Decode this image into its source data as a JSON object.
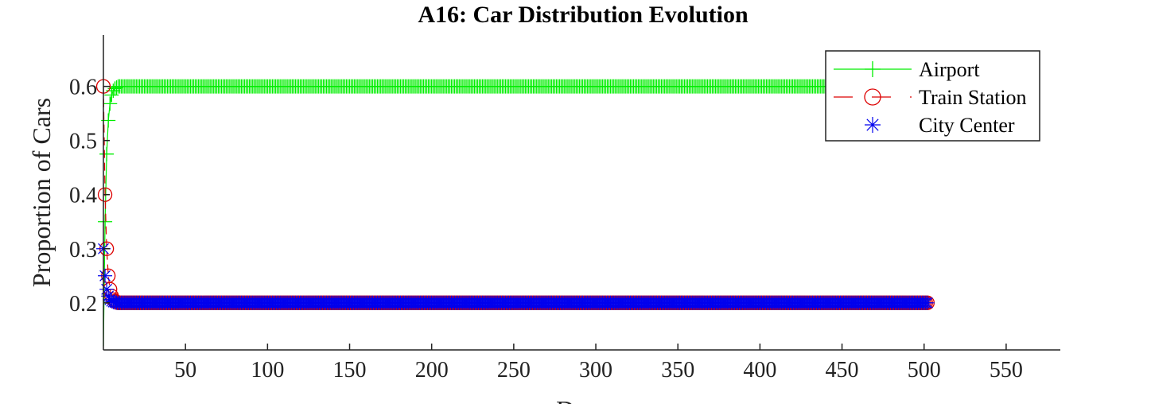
{
  "chart_data": {
    "type": "line",
    "title": "A16: Car Distribution Evolution",
    "xlabel": "Days",
    "ylabel": "Proportion of Cars",
    "xlim": [
      0,
      583
    ],
    "ylim": [
      0.113,
      0.695
    ],
    "xticks": [
      50,
      100,
      150,
      200,
      250,
      300,
      350,
      400,
      450,
      500,
      550
    ],
    "yticks": [
      0.2,
      0.3,
      0.4,
      0.5,
      0.6
    ],
    "grid": false,
    "legend_position": "top-right",
    "series": [
      {
        "name": "Airport",
        "color": "#00ee00",
        "marker": "plus",
        "line": "solid",
        "early_x": [
          0,
          1,
          2,
          3,
          4,
          5,
          6,
          7,
          8
        ],
        "early_y": [
          0.12,
          0.35,
          0.475,
          0.537,
          0.568,
          0.584,
          0.592,
          0.596,
          0.598
        ],
        "x_end": 502,
        "steady_value": 0.6
      },
      {
        "name": "Train Station",
        "color": "#dd0000",
        "marker": "circle",
        "line": "dashed",
        "early_x": [
          0,
          1,
          2,
          3,
          4,
          5,
          6,
          7,
          8
        ],
        "early_y": [
          0.6,
          0.4,
          0.3,
          0.25,
          0.225,
          0.2125,
          0.206,
          0.203,
          0.2015
        ],
        "x_end": 502,
        "steady_value": 0.2
      },
      {
        "name": "City Center",
        "color": "#0000ee",
        "marker": "star",
        "line": "none",
        "early_x": [
          0,
          1,
          2,
          3,
          4,
          5,
          6,
          7,
          8
        ],
        "early_y": [
          0.3,
          0.25,
          0.225,
          0.2125,
          0.206,
          0.203,
          0.2015,
          0.2008,
          0.2004
        ],
        "x_end": 502,
        "steady_value": 0.2
      }
    ]
  }
}
